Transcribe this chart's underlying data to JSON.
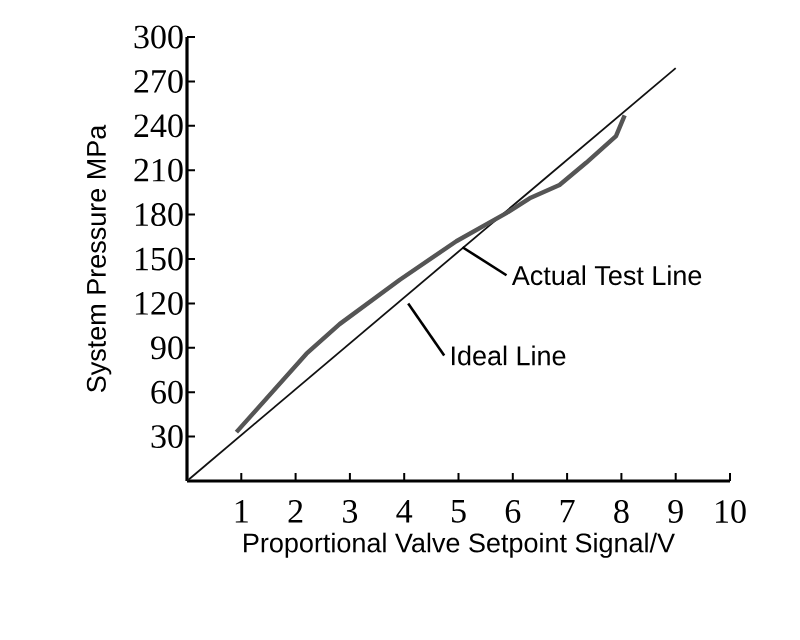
{
  "chart_data": {
    "type": "line",
    "xlabel": "Proportional Valve Setpoint Signal/V",
    "ylabel": "System Pressure MPa",
    "xlim": [
      0,
      10
    ],
    "ylim": [
      0,
      300
    ],
    "xticks": [
      1,
      2,
      3,
      4,
      5,
      6,
      7,
      8,
      9,
      10
    ],
    "yticks": [
      30,
      60,
      90,
      120,
      150,
      180,
      210,
      240,
      270,
      300
    ],
    "grid": false,
    "series": [
      {
        "color": "#111111",
        "x": [
          0,
          9
        ],
        "values": [
          0,
          279
        ]
      },
      {
        "color": "#555555",
        "x": [
          0.91,
          2.2,
          2.81,
          3.92,
          4.96,
          5.88,
          6.31,
          6.86,
          7.35,
          7.9,
          8.06
        ],
        "values": [
          33,
          86,
          106,
          136,
          162,
          181,
          191,
          200,
          215,
          233,
          247
        ]
      }
    ],
    "annotations": [
      {
        "text": "Actual Test Line",
        "x": 5.0,
        "y": 162
      },
      {
        "text": "Ideal Line",
        "x": 4.0,
        "y": 124
      }
    ]
  }
}
